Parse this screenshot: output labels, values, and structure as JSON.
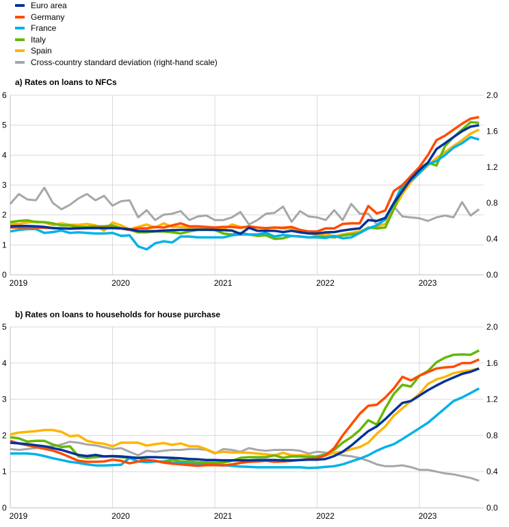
{
  "chart_data": [
    {
      "type": "line",
      "title": "a) Rates on loans to NFCs",
      "x_start": "2019-01",
      "frequency": "monthly",
      "x_tick_labels": [
        "2019",
        "2020",
        "2021",
        "2022",
        "2023"
      ],
      "ylim": [
        0,
        6
      ],
      "y_ticks": [
        "0",
        "1",
        "2",
        "3",
        "4",
        "5",
        "6"
      ],
      "y2lim": [
        0,
        2.0
      ],
      "y2_ticks": [
        "0.0",
        "0.4",
        "0.8",
        "1.2",
        "1.6",
        "2.0"
      ],
      "grid": true,
      "series": [
        {
          "name": "Cross-country standard deviation (right-hand scale)",
          "color": "#a6a6a6",
          "axis": "right",
          "values": [
            0.79,
            0.9,
            0.84,
            0.83,
            0.97,
            0.8,
            0.73,
            0.78,
            0.85,
            0.9,
            0.83,
            0.88,
            0.77,
            0.82,
            0.83,
            0.64,
            0.72,
            0.61,
            0.67,
            0.68,
            0.71,
            0.61,
            0.65,
            0.66,
            0.61,
            0.61,
            0.64,
            0.7,
            0.56,
            0.61,
            0.68,
            0.69,
            0.76,
            0.59,
            0.71,
            0.65,
            0.64,
            0.61,
            0.72,
            0.61,
            0.79,
            0.68,
            0.68,
            0.56,
            0.62,
            0.76,
            0.65,
            0.64,
            0.63,
            0.6,
            0.64,
            0.66,
            0.64,
            0.81,
            0.66,
            0.73
          ]
        },
        {
          "name": "Spain",
          "color": "#ffb400",
          "axis": "left",
          "values": [
            1.7,
            1.7,
            1.75,
            1.78,
            1.75,
            1.66,
            1.72,
            1.67,
            1.67,
            1.7,
            1.65,
            1.47,
            1.75,
            1.65,
            1.52,
            1.6,
            1.68,
            1.58,
            1.72,
            1.6,
            1.6,
            1.58,
            1.58,
            1.58,
            1.57,
            1.52,
            1.68,
            1.6,
            1.58,
            1.58,
            1.55,
            1.58,
            1.55,
            1.55,
            1.45,
            1.42,
            1.3,
            1.38,
            1.28,
            1.35,
            1.4,
            1.45,
            1.55,
            1.62,
            1.7,
            2.2,
            2.7,
            3.1,
            3.4,
            3.65,
            3.9,
            4.1,
            4.3,
            4.5,
            4.72,
            4.85
          ]
        },
        {
          "name": "Italy",
          "color": "#65b800",
          "axis": "left",
          "values": [
            1.76,
            1.8,
            1.82,
            1.76,
            1.76,
            1.72,
            1.65,
            1.65,
            1.6,
            1.6,
            1.62,
            1.62,
            1.65,
            1.55,
            1.5,
            1.42,
            1.42,
            1.45,
            1.45,
            1.42,
            1.38,
            1.45,
            1.5,
            1.5,
            1.5,
            1.38,
            1.35,
            1.4,
            1.35,
            1.3,
            1.32,
            1.2,
            1.22,
            1.3,
            1.28,
            1.25,
            1.27,
            1.28,
            1.25,
            1.32,
            1.35,
            1.4,
            1.58,
            1.55,
            1.58,
            2.2,
            2.9,
            3.2,
            3.55,
            3.75,
            3.65,
            4.3,
            4.6,
            4.85,
            5.1,
            5.08
          ]
        },
        {
          "name": "France",
          "color": "#00b1ea",
          "axis": "left",
          "values": [
            1.45,
            1.5,
            1.53,
            1.53,
            1.4,
            1.43,
            1.48,
            1.4,
            1.42,
            1.4,
            1.38,
            1.38,
            1.4,
            1.3,
            1.32,
            0.95,
            0.85,
            1.05,
            1.12,
            1.08,
            1.28,
            1.28,
            1.25,
            1.25,
            1.25,
            1.25,
            1.32,
            1.35,
            1.35,
            1.35,
            1.4,
            1.28,
            1.33,
            1.3,
            1.28,
            1.25,
            1.25,
            1.23,
            1.3,
            1.22,
            1.25,
            1.4,
            1.55,
            1.65,
            1.85,
            2.4,
            3.0,
            3.15,
            3.4,
            3.7,
            3.8,
            4.0,
            4.25,
            4.4,
            4.6,
            4.52
          ]
        },
        {
          "name": "Germany",
          "color": "#ff4b00",
          "axis": "left",
          "values": [
            1.58,
            1.58,
            1.58,
            1.58,
            1.57,
            1.56,
            1.55,
            1.55,
            1.56,
            1.56,
            1.57,
            1.57,
            1.57,
            1.55,
            1.5,
            1.55,
            1.55,
            1.6,
            1.58,
            1.65,
            1.72,
            1.62,
            1.62,
            1.6,
            1.58,
            1.6,
            1.6,
            1.57,
            1.62,
            1.58,
            1.56,
            1.58,
            1.57,
            1.6,
            1.5,
            1.45,
            1.45,
            1.55,
            1.55,
            1.7,
            1.72,
            1.72,
            2.3,
            2.05,
            2.15,
            2.8,
            3.0,
            3.3,
            3.6,
            4.0,
            4.5,
            4.65,
            4.85,
            5.05,
            5.22,
            5.27
          ]
        },
        {
          "name": "Euro area",
          "color": "#003299",
          "axis": "left",
          "values": [
            1.62,
            1.63,
            1.63,
            1.62,
            1.6,
            1.56,
            1.55,
            1.54,
            1.55,
            1.56,
            1.56,
            1.56,
            1.56,
            1.55,
            1.52,
            1.46,
            1.46,
            1.46,
            1.48,
            1.49,
            1.5,
            1.5,
            1.51,
            1.51,
            1.5,
            1.49,
            1.48,
            1.37,
            1.57,
            1.47,
            1.47,
            1.47,
            1.43,
            1.47,
            1.42,
            1.38,
            1.38,
            1.42,
            1.43,
            1.48,
            1.52,
            1.55,
            1.83,
            1.8,
            1.9,
            2.4,
            2.8,
            3.2,
            3.5,
            3.75,
            4.2,
            4.4,
            4.6,
            4.8,
            4.95,
            5.0
          ]
        }
      ]
    },
    {
      "type": "line",
      "title": "b) Rates on loans to households for house purchase",
      "x_start": "2019-01",
      "frequency": "monthly",
      "x_tick_labels": [
        "2019",
        "2020",
        "2021",
        "2022",
        "2023"
      ],
      "ylim": [
        0,
        5
      ],
      "y_ticks": [
        "0",
        "1",
        "2",
        "3",
        "4",
        "5"
      ],
      "y2lim": [
        0,
        2.0
      ],
      "y2_ticks": [
        "0.0",
        "0.4",
        "0.8",
        "1.2",
        "1.6",
        "2.0"
      ],
      "grid": true,
      "series": [
        {
          "name": "Cross-country standard deviation (right-hand scale)",
          "color": "#a6a6a6",
          "axis": "right",
          "values": [
            0.65,
            0.64,
            0.65,
            0.66,
            0.68,
            0.68,
            0.7,
            0.73,
            0.72,
            0.7,
            0.69,
            0.67,
            0.65,
            0.66,
            0.62,
            0.58,
            0.63,
            0.62,
            0.63,
            0.64,
            0.64,
            0.65,
            0.65,
            0.64,
            0.6,
            0.65,
            0.64,
            0.62,
            0.66,
            0.64,
            0.63,
            0.64,
            0.64,
            0.64,
            0.63,
            0.6,
            0.62,
            0.61,
            0.6,
            0.58,
            0.57,
            0.55,
            0.52,
            0.48,
            0.46,
            0.46,
            0.47,
            0.45,
            0.42,
            0.42,
            0.4,
            0.38,
            0.37,
            0.35,
            0.33,
            0.3
          ]
        },
        {
          "name": "Spain",
          "color": "#ffb400",
          "axis": "left",
          "values": [
            2.03,
            2.08,
            2.1,
            2.12,
            2.15,
            2.15,
            2.1,
            1.98,
            2.0,
            1.85,
            1.8,
            1.77,
            1.7,
            1.8,
            1.8,
            1.8,
            1.72,
            1.76,
            1.79,
            1.74,
            1.78,
            1.7,
            1.7,
            1.62,
            1.52,
            1.55,
            1.53,
            1.53,
            1.52,
            1.5,
            1.48,
            1.45,
            1.52,
            1.45,
            1.45,
            1.45,
            1.4,
            1.45,
            1.52,
            1.55,
            1.62,
            1.68,
            1.8,
            2.05,
            2.25,
            2.55,
            2.75,
            2.95,
            3.15,
            3.42,
            3.55,
            3.62,
            3.72,
            3.77,
            3.8,
            3.85
          ]
        },
        {
          "name": "Italy",
          "color": "#65b800",
          "axis": "left",
          "values": [
            1.95,
            1.92,
            1.83,
            1.85,
            1.85,
            1.75,
            1.68,
            1.7,
            1.42,
            1.38,
            1.4,
            1.42,
            1.42,
            1.4,
            1.38,
            1.38,
            1.32,
            1.28,
            1.28,
            1.33,
            1.28,
            1.28,
            1.26,
            1.25,
            1.25,
            1.25,
            1.3,
            1.38,
            1.4,
            1.4,
            1.4,
            1.45,
            1.38,
            1.42,
            1.42,
            1.4,
            1.42,
            1.48,
            1.6,
            1.8,
            1.95,
            2.15,
            2.42,
            2.3,
            2.75,
            3.15,
            3.4,
            3.35,
            3.65,
            3.78,
            4.02,
            4.15,
            4.23,
            4.24,
            4.23,
            4.35
          ]
        },
        {
          "name": "France",
          "color": "#00b1ea",
          "axis": "left",
          "values": [
            1.5,
            1.5,
            1.5,
            1.48,
            1.43,
            1.37,
            1.32,
            1.27,
            1.24,
            1.2,
            1.17,
            1.17,
            1.18,
            1.19,
            1.38,
            1.28,
            1.26,
            1.28,
            1.27,
            1.25,
            1.23,
            1.22,
            1.2,
            1.2,
            1.2,
            1.18,
            1.16,
            1.14,
            1.13,
            1.12,
            1.12,
            1.12,
            1.12,
            1.12,
            1.12,
            1.1,
            1.11,
            1.13,
            1.15,
            1.2,
            1.28,
            1.36,
            1.45,
            1.58,
            1.68,
            1.76,
            1.9,
            2.05,
            2.2,
            2.35,
            2.55,
            2.75,
            2.95,
            3.05,
            3.17,
            3.3
          ]
        },
        {
          "name": "Germany",
          "color": "#ff4b00",
          "axis": "left",
          "values": [
            1.85,
            1.78,
            1.73,
            1.68,
            1.63,
            1.58,
            1.5,
            1.4,
            1.3,
            1.27,
            1.27,
            1.28,
            1.33,
            1.3,
            1.23,
            1.28,
            1.32,
            1.3,
            1.25,
            1.22,
            1.2,
            1.18,
            1.16,
            1.18,
            1.18,
            1.17,
            1.2,
            1.24,
            1.27,
            1.28,
            1.3,
            1.27,
            1.28,
            1.3,
            1.32,
            1.34,
            1.38,
            1.45,
            1.65,
            2.0,
            2.3,
            2.6,
            2.82,
            2.85,
            3.05,
            3.3,
            3.62,
            3.52,
            3.65,
            3.75,
            3.85,
            3.88,
            3.9,
            4.0,
            4.0,
            4.1
          ]
        },
        {
          "name": "Euro area",
          "color": "#003299",
          "axis": "left",
          "values": [
            1.8,
            1.78,
            1.76,
            1.73,
            1.7,
            1.65,
            1.6,
            1.53,
            1.46,
            1.43,
            1.46,
            1.42,
            1.43,
            1.42,
            1.4,
            1.38,
            1.4,
            1.4,
            1.39,
            1.38,
            1.37,
            1.35,
            1.34,
            1.32,
            1.32,
            1.31,
            1.31,
            1.31,
            1.31,
            1.32,
            1.32,
            1.32,
            1.31,
            1.31,
            1.32,
            1.33,
            1.33,
            1.35,
            1.43,
            1.55,
            1.72,
            1.92,
            2.12,
            2.25,
            2.45,
            2.68,
            2.9,
            2.95,
            3.1,
            3.25,
            3.38,
            3.5,
            3.6,
            3.7,
            3.76,
            3.85
          ]
        }
      ]
    }
  ],
  "legend": [
    {
      "label": "Euro area",
      "color": "#003299"
    },
    {
      "label": "Germany",
      "color": "#ff4b00"
    },
    {
      "label": "France",
      "color": "#00b1ea"
    },
    {
      "label": "Italy",
      "color": "#65b800"
    },
    {
      "label": "Spain",
      "color": "#ffb400"
    },
    {
      "label": "Cross-country standard deviation (right-hand scale)",
      "color": "#a6a6a6"
    }
  ]
}
